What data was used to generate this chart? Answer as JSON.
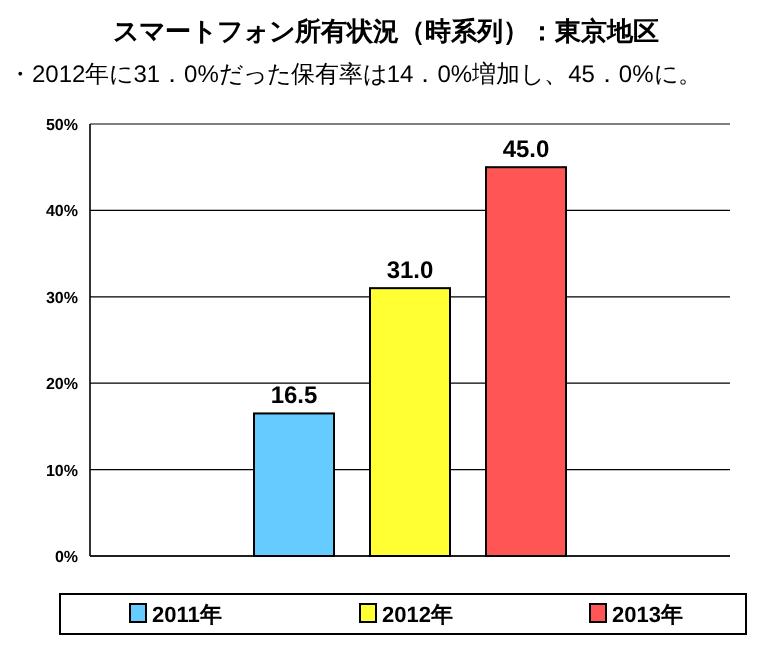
{
  "chart_data": {
    "type": "bar",
    "title": "スマートフォン所有状況（時系列）：東京地区",
    "subtitle": "・2012年に31．0%だった保有率は14．0%増加し、45．0%に。",
    "categories": [
      null
    ],
    "series": [
      {
        "name": "2011年",
        "color": "#66ccff",
        "values": [
          16.5
        ],
        "value_labels": [
          "16.5"
        ]
      },
      {
        "name": "2012年",
        "color": "#ffff33",
        "values": [
          31.0
        ],
        "value_labels": [
          "31.0"
        ]
      },
      {
        "name": "2013年",
        "color": "#ff5555",
        "values": [
          45.0
        ],
        "value_labels": [
          "45.0"
        ]
      }
    ],
    "ylim": [
      0,
      50
    ],
    "yticks": [
      {
        "value": 0,
        "label": "0%"
      },
      {
        "value": 10,
        "label": "10%"
      },
      {
        "value": 20,
        "label": "20%"
      },
      {
        "value": 30,
        "label": "30%"
      },
      {
        "value": 40,
        "label": "40%"
      },
      {
        "value": 50,
        "label": "50%"
      }
    ],
    "grid": "y",
    "legend": "bottom"
  }
}
